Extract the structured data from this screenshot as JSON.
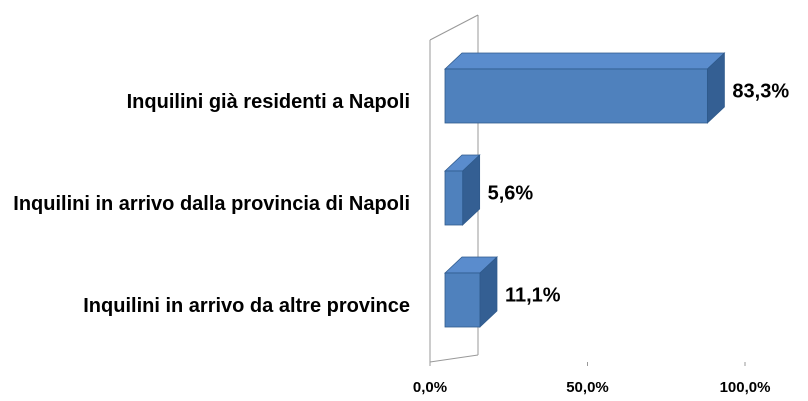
{
  "chart_data": {
    "type": "bar",
    "orientation": "horizontal",
    "categories": [
      "Inquilini già residenti a Napoli",
      "Inquilini in arrivo dalla provincia di Napoli",
      "Inquilini in arrivo da altre province"
    ],
    "values": [
      83.3,
      5.6,
      11.1
    ],
    "value_labels": [
      "83,3%",
      "5,6%",
      "11,1%"
    ],
    "color": "#4f81bd",
    "xlim": [
      0,
      100
    ],
    "xticks": [
      {
        "value": 0,
        "label": "0,0%"
      },
      {
        "value": 50,
        "label": "50,0%"
      },
      {
        "value": 100,
        "label": "100,0%"
      }
    ]
  }
}
